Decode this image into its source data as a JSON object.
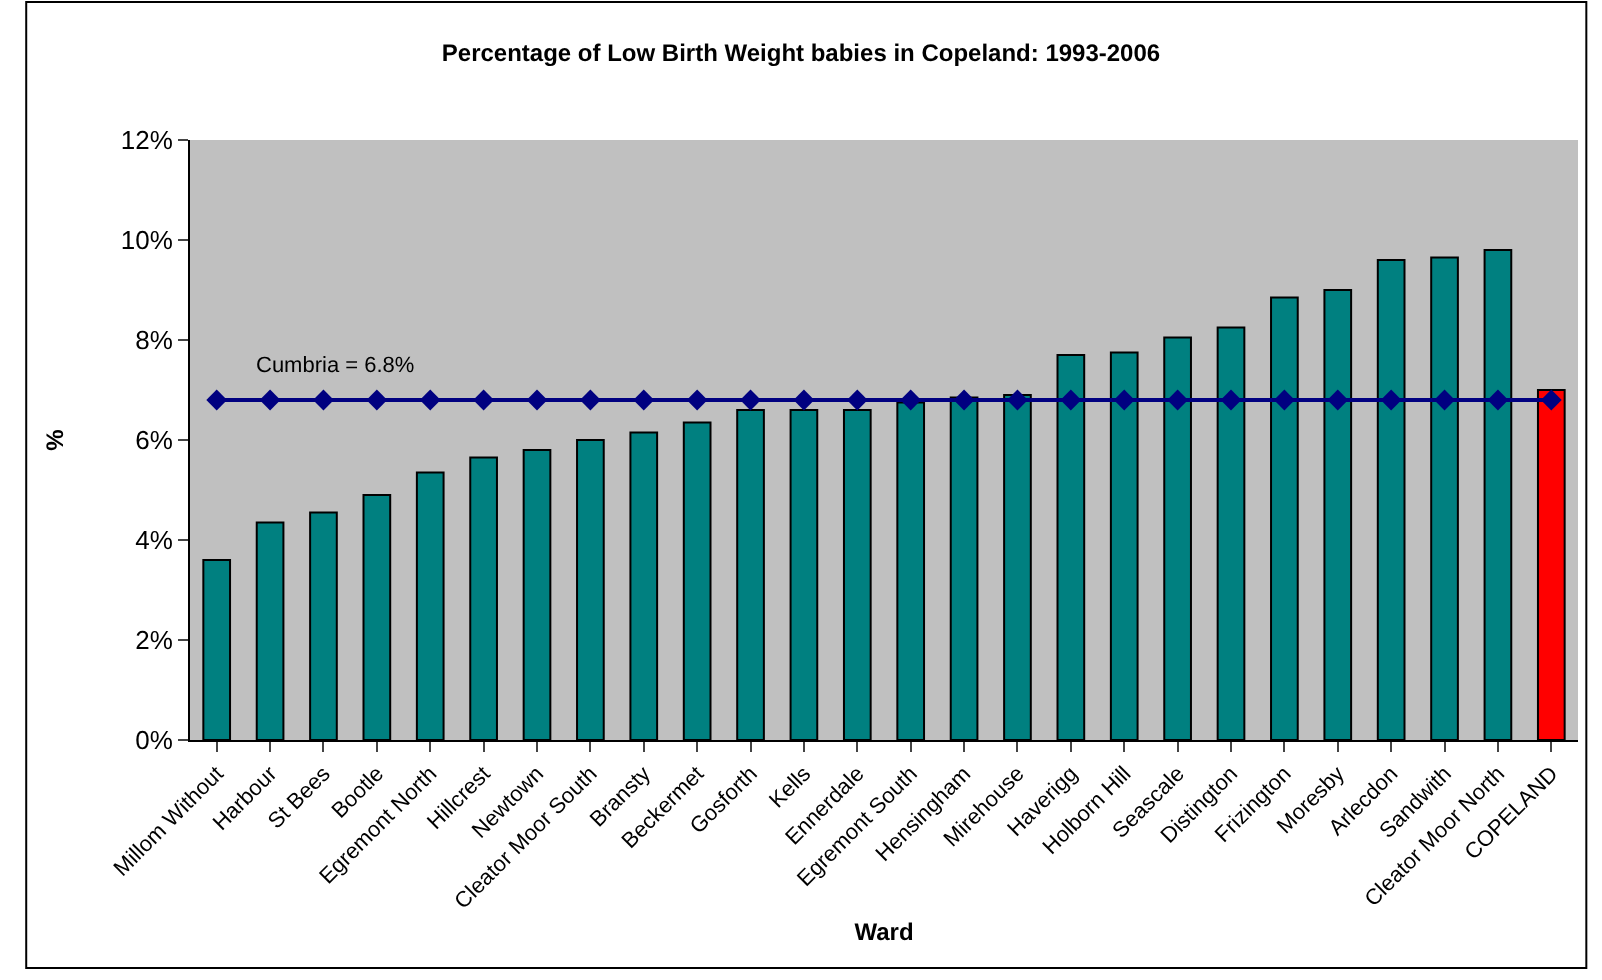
{
  "chart_data": {
    "type": "bar",
    "title": "Percentage of Low Birth Weight babies in Copeland: 1993-2006",
    "xlabel": "Ward",
    "ylabel": "%",
    "categories": [
      "Millom Without",
      "Harbour",
      "St Bees",
      "Bootle",
      "Egremont North",
      "Hillcrest",
      "Newtown",
      "Cleator Moor South",
      "Bransty",
      "Beckermet",
      "Gosforth",
      "Kells",
      "Ennerdale",
      "Egremont South",
      "Hensingham",
      "Mirehouse",
      "Haverigg",
      "Holborn Hill",
      "Seascale",
      "Distington",
      "Frizington",
      "Moresby",
      "Arlecdon",
      "Sandwith",
      "Cleator Moor North",
      "COPELAND"
    ],
    "series": [
      {
        "colors": [
          "#008080",
          "#008080",
          "#008080",
          "#008080",
          "#008080",
          "#008080",
          "#008080",
          "#008080",
          "#008080",
          "#008080",
          "#008080",
          "#008080",
          "#008080",
          "#008080",
          "#008080",
          "#008080",
          "#008080",
          "#008080",
          "#008080",
          "#008080",
          "#008080",
          "#008080",
          "#008080",
          "#008080",
          "#008080",
          "#ff0000"
        ],
        "values": [
          3.6,
          4.35,
          4.55,
          4.9,
          5.35,
          5.65,
          5.8,
          6.0,
          6.15,
          6.35,
          6.6,
          6.6,
          6.6,
          6.75,
          6.85,
          6.9,
          7.7,
          7.75,
          8.05,
          8.25,
          8.85,
          9.0,
          9.6,
          9.65,
          9.8,
          7.0
        ]
      },
      {
        "type": "line",
        "color": "#000080",
        "marker": "diamond",
        "values": [
          6.8,
          6.8,
          6.8,
          6.8,
          6.8,
          6.8,
          6.8,
          6.8,
          6.8,
          6.8,
          6.8,
          6.8,
          6.8,
          6.8,
          6.8,
          6.8,
          6.8,
          6.8,
          6.8,
          6.8,
          6.8,
          6.8,
          6.8,
          6.8,
          6.8,
          6.8
        ]
      }
    ],
    "annotations": [
      "Cumbria = 6.8%"
    ],
    "ylim": [
      0,
      12
    ],
    "yticks": [
      {
        "value": 0,
        "label": "0%"
      },
      {
        "value": 2,
        "label": "2%"
      },
      {
        "value": 4,
        "label": "4%"
      },
      {
        "value": 6,
        "label": "6%"
      },
      {
        "value": 8,
        "label": "8%"
      },
      {
        "value": 10,
        "label": "10%"
      },
      {
        "value": 12,
        "label": "12%"
      }
    ],
    "grid": false
  }
}
